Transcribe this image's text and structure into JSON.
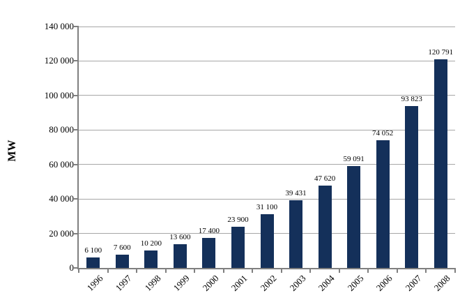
{
  "chart_data": {
    "type": "bar",
    "title": "",
    "xlabel": "",
    "ylabel": "MW",
    "categories": [
      "1996",
      "1997",
      "1998",
      "1999",
      "2000",
      "2001",
      "2002",
      "2003",
      "2004",
      "2005",
      "2006",
      "2007",
      "2008"
    ],
    "values": [
      6100,
      7600,
      10200,
      13600,
      17400,
      23900,
      31100,
      39431,
      47620,
      59091,
      74052,
      93823,
      120791
    ],
    "value_labels": [
      "6 100",
      "7 600",
      "10 200",
      "13 600",
      "17 400",
      "23 900",
      "31 100",
      "39 431",
      "47 620",
      "59 091",
      "74 052",
      "93 823",
      "120 791"
    ],
    "ylim": [
      0,
      140000
    ],
    "ytick_step": 20000,
    "ytick_labels": [
      "0",
      "20 000",
      "40 000",
      "60 000",
      "80 000",
      "100 000",
      "120 000",
      "140 000"
    ],
    "grid": true,
    "legend_position": "none",
    "colors": {
      "bar": "#14305A",
      "gridline": "#A6A6A6",
      "axis": "#7F7F7F",
      "text": "#000000",
      "background": "#FFFFFF"
    }
  }
}
